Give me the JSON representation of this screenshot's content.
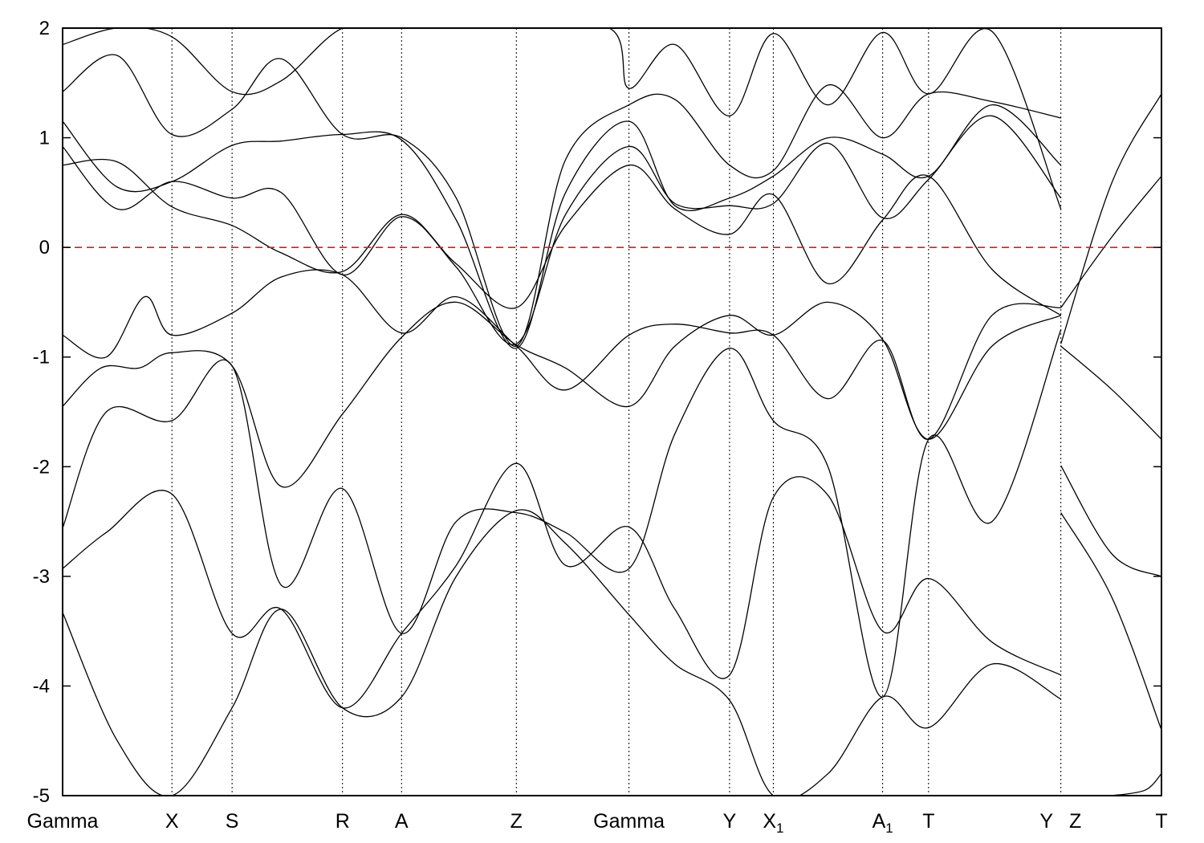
{
  "chart_data": {
    "type": "line",
    "title": "",
    "xlabel": "",
    "ylabel": "",
    "ylim": [
      -5,
      2
    ],
    "yticks": [
      2,
      1,
      0,
      -1,
      -2,
      -3,
      -4,
      -5
    ],
    "ytick_labels": [
      "2",
      "1",
      "0",
      "-1",
      "-2",
      "-3",
      "-4",
      "-5"
    ],
    "grid": false,
    "fermi_level": 0,
    "kpath": [
      {
        "label": "Gamma",
        "sub": "",
        "pos": 0.0
      },
      {
        "label": "X",
        "sub": "",
        "pos": 1.0
      },
      {
        "label": "S",
        "sub": "",
        "pos": 1.55
      },
      {
        "label": "R",
        "sub": "",
        "pos": 2.56
      },
      {
        "label": "A",
        "sub": "",
        "pos": 3.1
      },
      {
        "label": "Z",
        "sub": "",
        "pos": 4.15
      },
      {
        "label": "Gamma",
        "sub": "",
        "pos": 5.18
      },
      {
        "label": "Y",
        "sub": "",
        "pos": 6.1
      },
      {
        "label": "X",
        "sub": "1",
        "pos": 6.5
      },
      {
        "label": "A",
        "sub": "1",
        "pos": 7.5
      },
      {
        "label": "T",
        "sub": "",
        "pos": 7.92
      },
      {
        "label": "Y",
        "sub": "",
        "pos": 9.13
      },
      {
        "label": "Z",
        "sub": "",
        "pos": 9.13
      },
      {
        "label": "T",
        "sub": "",
        "pos": 10.05
      }
    ],
    "x_range": [
      0,
      10.05
    ],
    "segments": [
      {
        "x_start": 0.0,
        "x_end": 9.13
      },
      {
        "x_start": 9.13,
        "x_end": 10.05
      }
    ],
    "series": [
      {
        "segment": 0,
        "x": [
          0.0,
          0.5,
          1.0,
          1.55,
          2.0,
          2.56,
          3.1,
          3.6,
          4.15,
          4.6,
          5.18,
          5.6,
          6.1,
          6.5,
          7.0,
          7.5,
          7.92,
          8.5,
          9.13
        ],
        "values": [
          -3.33,
          -4.5,
          -5.0,
          -4.2,
          -3.3,
          -4.2,
          -4.1,
          -3.0,
          -2.4,
          -2.7,
          -3.35,
          -3.8,
          -4.13,
          -5.0,
          -4.8,
          -4.1,
          -4.38,
          -3.8,
          -4.12
        ]
      },
      {
        "segment": 0,
        "x": [
          0.0,
          0.4,
          1.0,
          1.55,
          2.0,
          2.56,
          3.1,
          3.6,
          4.15,
          4.6,
          5.18,
          5.6,
          6.1,
          6.5,
          7.0,
          7.5,
          7.92,
          8.5,
          9.13
        ],
        "values": [
          -2.93,
          -2.6,
          -2.25,
          -3.52,
          -3.3,
          -4.2,
          -3.52,
          -2.9,
          -1.97,
          -2.9,
          -2.55,
          -3.3,
          -3.9,
          -2.28,
          -2.26,
          -3.5,
          -3.02,
          -3.6,
          -3.9
        ]
      },
      {
        "segment": 0,
        "x": [
          0.0,
          0.4,
          1.0,
          1.55,
          2.0,
          2.56,
          3.1,
          3.6,
          4.15,
          4.6,
          5.18,
          5.6,
          6.1,
          6.5,
          7.0,
          7.5,
          7.92,
          8.5,
          9.13
        ],
        "values": [
          -2.56,
          -1.5,
          -1.58,
          -1.08,
          -3.08,
          -2.2,
          -3.52,
          -2.5,
          -2.42,
          -2.6,
          -2.93,
          -1.7,
          -0.92,
          -1.58,
          -2.0,
          -4.1,
          -1.75,
          -2.5,
          -0.75
        ]
      },
      {
        "segment": 0,
        "x": [
          0.0,
          0.35,
          0.7,
          1.0,
          1.55,
          2.0,
          2.56,
          3.1,
          3.6,
          4.15,
          4.6,
          5.18,
          5.6,
          6.1,
          6.5,
          7.0,
          7.5,
          7.92,
          8.5,
          9.13
        ],
        "values": [
          -1.45,
          -1.1,
          -1.1,
          -0.96,
          -1.08,
          -2.18,
          -1.52,
          -0.82,
          -0.5,
          -0.89,
          -1.1,
          -1.45,
          -0.9,
          -0.62,
          -0.8,
          -0.5,
          -0.84,
          -1.75,
          -0.9,
          -0.62
        ]
      },
      {
        "segment": 0,
        "x": [
          0.0,
          0.4,
          0.75,
          1.0,
          1.55,
          2.0,
          2.56,
          3.1,
          3.6,
          4.15,
          4.6,
          5.18,
          5.6,
          6.1,
          6.5,
          7.0,
          7.5,
          7.92,
          8.5,
          9.13
        ],
        "values": [
          -0.8,
          -1.0,
          -0.45,
          -0.8,
          -0.6,
          -0.27,
          -0.25,
          -0.78,
          -0.45,
          -0.9,
          -1.3,
          -0.8,
          -0.7,
          -0.78,
          -0.8,
          -1.38,
          -0.85,
          -1.75,
          -0.62,
          -0.55
        ]
      },
      {
        "segment": 0,
        "x": [
          0.0,
          0.5,
          1.0,
          1.55,
          2.0,
          2.56,
          3.1,
          3.6,
          4.15,
          4.6,
          5.18,
          5.6,
          6.1,
          6.5,
          7.0,
          7.5,
          7.92,
          8.5,
          9.13
        ],
        "values": [
          0.75,
          0.78,
          0.37,
          0.2,
          -0.05,
          -0.22,
          0.3,
          -0.15,
          -0.55,
          0.2,
          0.75,
          0.35,
          0.12,
          0.48,
          -0.33,
          0.25,
          0.65,
          -0.2,
          -0.62
        ]
      },
      {
        "segment": 0,
        "x": [
          0.0,
          0.5,
          1.0,
          1.55,
          2.0,
          2.56,
          3.1,
          3.6,
          4.15,
          4.6,
          5.18,
          5.6,
          6.1,
          6.5,
          7.0,
          7.5,
          7.92,
          8.5,
          9.13
        ],
        "values": [
          0.92,
          0.35,
          0.6,
          0.45,
          0.5,
          -0.25,
          0.28,
          -0.18,
          -0.88,
          0.3,
          0.92,
          0.4,
          0.38,
          0.4,
          0.95,
          0.27,
          0.62,
          1.2,
          0.45
        ]
      },
      {
        "segment": 0,
        "x": [
          0.0,
          0.5,
          1.0,
          1.55,
          2.0,
          2.56,
          3.1,
          3.6,
          4.15,
          4.6,
          5.18,
          5.6,
          6.1,
          6.5,
          7.0,
          7.5,
          7.92,
          8.5,
          9.13
        ],
        "values": [
          1.15,
          0.55,
          0.6,
          0.93,
          0.97,
          1.03,
          0.98,
          0.25,
          -0.92,
          0.5,
          1.15,
          0.38,
          0.45,
          0.65,
          1.0,
          0.85,
          0.65,
          1.3,
          0.75
        ]
      },
      {
        "segment": 0,
        "x": [
          0.0,
          0.5,
          1.0,
          1.55,
          2.0,
          2.56,
          3.1,
          3.6,
          4.15,
          4.6,
          5.18,
          5.6,
          6.1,
          6.5,
          7.0,
          7.5,
          7.92,
          8.5,
          9.13
        ],
        "values": [
          1.42,
          1.75,
          1.03,
          1.26,
          1.72,
          1.03,
          1.0,
          0.45,
          -0.9,
          0.8,
          1.3,
          1.35,
          0.75,
          0.7,
          1.48,
          1.0,
          1.4,
          1.33,
          1.18
        ]
      },
      {
        "segment": 0,
        "x": [
          0.0,
          0.5,
          1.0,
          1.55,
          2.0,
          2.56,
          3.1,
          4.0,
          5.0,
          5.18,
          5.6,
          6.1,
          6.5,
          7.0,
          7.5,
          7.92,
          8.5,
          9.13
        ],
        "values": [
          1.85,
          2.0,
          1.92,
          1.42,
          1.52,
          2.0,
          2.0,
          2.0,
          2.0,
          1.45,
          1.85,
          1.2,
          1.95,
          1.3,
          1.96,
          1.4,
          1.97,
          0.35
        ]
      },
      {
        "segment": 1,
        "x": [
          9.13,
          9.6,
          10.05
        ],
        "values": [
          -0.9,
          -1.3,
          -1.75
        ]
      },
      {
        "segment": 1,
        "x": [
          9.13,
          9.6,
          10.05
        ],
        "values": [
          -0.55,
          0.1,
          0.65
        ]
      },
      {
        "segment": 1,
        "x": [
          9.13,
          9.6,
          10.05
        ],
        "values": [
          -0.88,
          0.6,
          1.4
        ]
      },
      {
        "segment": 1,
        "x": [
          9.13,
          9.6,
          10.05
        ],
        "values": [
          -1.99,
          -2.8,
          -3.0
        ]
      },
      {
        "segment": 1,
        "x": [
          9.13,
          9.6,
          10.05
        ],
        "values": [
          -2.42,
          -3.2,
          -4.4
        ]
      },
      {
        "segment": 1,
        "x": [
          9.6,
          9.9,
          10.05
        ],
        "values": [
          -5.0,
          -4.95,
          -4.8
        ]
      }
    ]
  }
}
